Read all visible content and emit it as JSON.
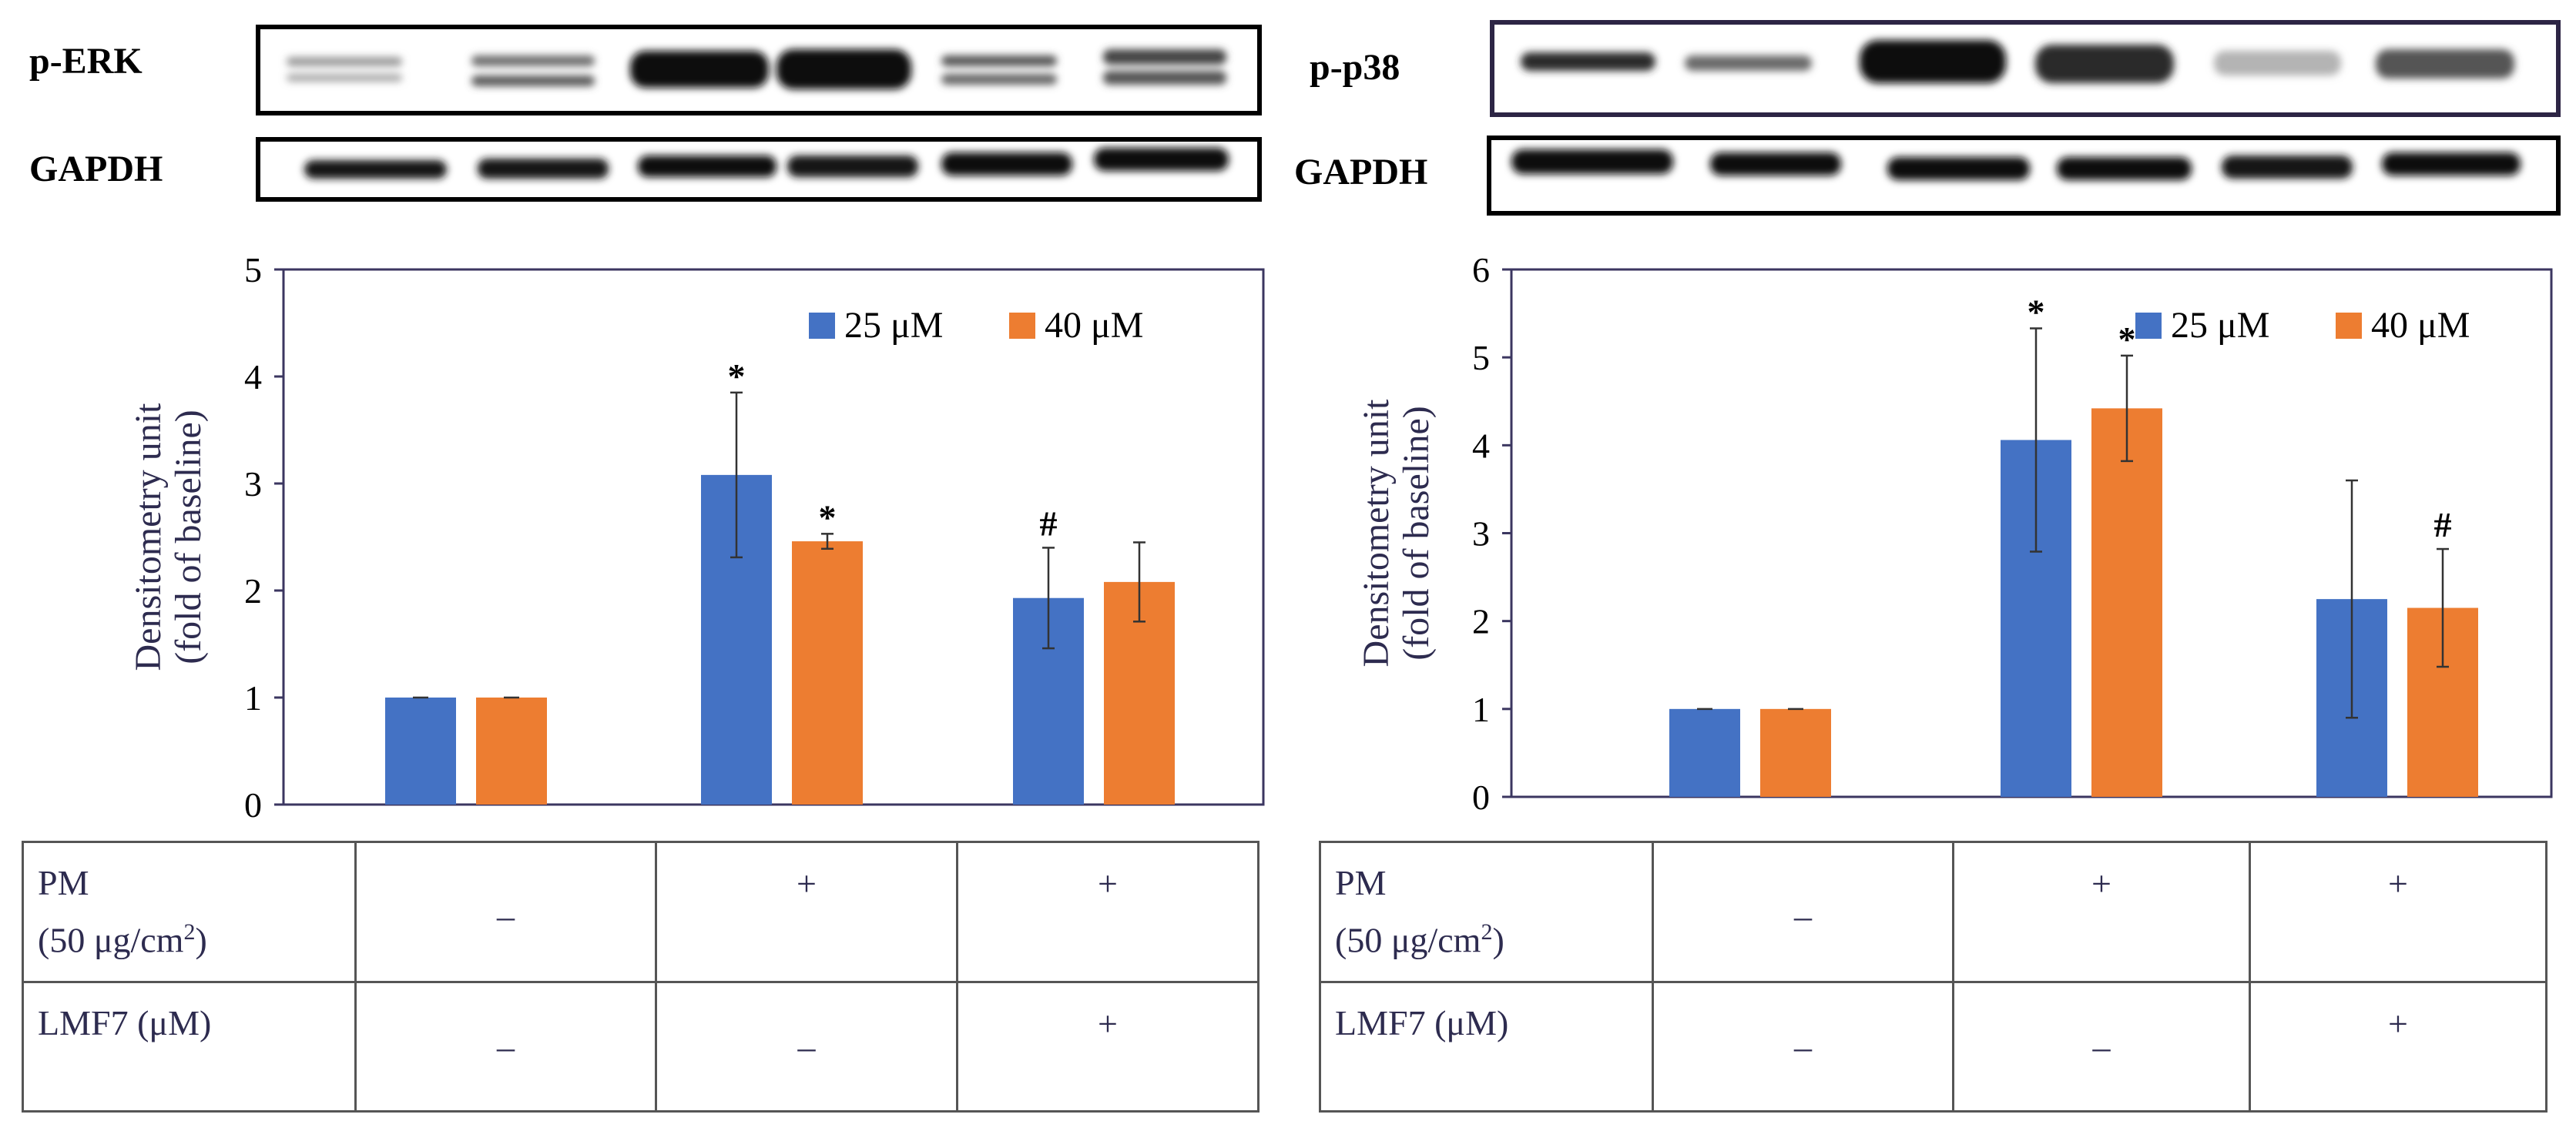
{
  "colors": {
    "series_25": "#4472c4",
    "series_40": "#ed7d31",
    "axis": "#3b3660",
    "error_bar": "#333333"
  },
  "panels": [
    {
      "blots": {
        "top_label": "p-ERK",
        "bottom_label": "GAPDH"
      },
      "ylabel_lines": [
        "Densitometry unit",
        "(fold of baseline)"
      ],
      "table": {
        "pm_label": "PM",
        "pm_unit": "(50 μg/cm",
        "pm_unit_sup": "2",
        "pm_unit_close": ")",
        "pm_values": [
          "–",
          "+",
          "+"
        ],
        "lmf_label": "LMF7 (μM)",
        "lmf_values": [
          "–",
          "–",
          "+"
        ]
      }
    },
    {
      "blots": {
        "top_label": "p-p38",
        "bottom_label": "GAPDH"
      },
      "ylabel_lines": [
        "Densitometry unit",
        "(fold of baseline)"
      ],
      "table": {
        "pm_label": "PM",
        "pm_unit": "(50 μg/cm",
        "pm_unit_sup": "2",
        "pm_unit_close": ")",
        "pm_values": [
          "–",
          "+",
          "+"
        ],
        "lmf_label": "LMF7 (μM)",
        "lmf_values": [
          "–",
          "–",
          "+"
        ]
      }
    }
  ],
  "chart_data": [
    {
      "type": "bar",
      "ylim": [
        0,
        5
      ],
      "yticks": [
        0,
        1,
        2,
        3,
        4,
        5
      ],
      "grid": false,
      "legend_position": "top-right",
      "series": [
        {
          "name": "25 μM",
          "values": [
            1.0,
            3.08,
            1.93
          ],
          "errors": [
            0.0,
            0.77,
            0.47
          ],
          "annotations": [
            "",
            "*",
            "#"
          ]
        },
        {
          "name": "40 μM",
          "values": [
            1.0,
            2.46,
            2.08
          ],
          "errors": [
            0.0,
            0.07,
            0.37
          ],
          "annotations": [
            "",
            "*",
            ""
          ]
        }
      ]
    },
    {
      "type": "bar",
      "ylim": [
        0,
        6
      ],
      "yticks": [
        0,
        1,
        2,
        3,
        4,
        5,
        6
      ],
      "grid": false,
      "legend_position": "top-right",
      "series": [
        {
          "name": "25 μM",
          "values": [
            1.0,
            4.06,
            2.25
          ],
          "errors": [
            0.0,
            1.27,
            1.35
          ],
          "annotations": [
            "",
            "*",
            ""
          ]
        },
        {
          "name": "40 μM",
          "values": [
            1.0,
            4.42,
            2.15
          ],
          "errors": [
            0.0,
            0.6,
            0.67
          ],
          "annotations": [
            "",
            "*",
            "#"
          ]
        }
      ]
    }
  ]
}
